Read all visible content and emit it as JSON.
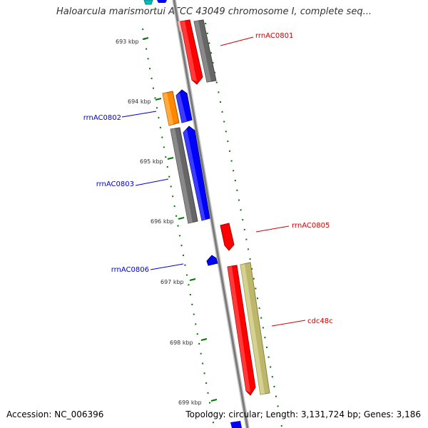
{
  "header": {
    "title": "Haloarcula marismortui ATCC 43049 chromosome I, complete seq..."
  },
  "footer": {
    "accession": "Accession: NC_006396",
    "summary": "Topology: circular; Length: 3,131,724 bp; Genes: 3,186"
  },
  "scale": {
    "ticks": [
      "693 kbp",
      "694 kbp",
      "695 kbp",
      "696 kbp",
      "697 kbp",
      "698 kbp",
      "699 kbp"
    ]
  },
  "genes": {
    "rrnAC0801": "rrnAC0801",
    "rrnAC0802": "rrnAC0802",
    "rrnAC0803": "rrnAC0803",
    "rrnAC0805": "rrnAC0805",
    "rrnAC0806": "rrnAC0806",
    "cdc48c": "cdc48c"
  },
  "colors": {
    "forward_label": "#cc0000",
    "reverse_label": "#0000cc",
    "red_feature": "#ff0000",
    "blue_feature": "#0000ff",
    "gray_feature": "#666666",
    "orange_feature": "#ff8800",
    "khaki_feature": "#bdb76b",
    "cyan_feature": "#00bbbb",
    "tick_green": "#007700"
  }
}
